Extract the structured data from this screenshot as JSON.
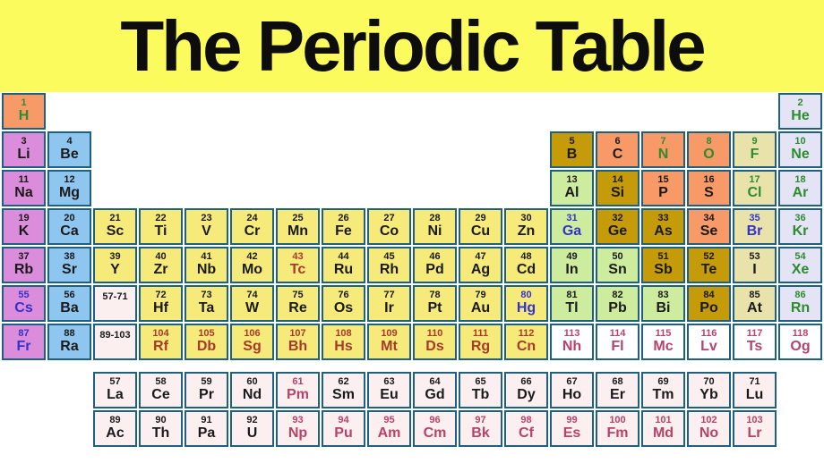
{
  "title": "The Periodic Table",
  "palette": {
    "header_bg": "#fbfb5e",
    "border": "#1d6080",
    "bg": {
      "alkali": "#db8cdb",
      "alkaline": "#8fc6f0",
      "transition": "#f6eb7a",
      "post": "#cdec9e",
      "metalloid": "#c59b0a",
      "nonmetal": "#f89a68",
      "halogen": "#eae2ab",
      "noble": "#e4e4f6",
      "fblock": "#fcefef",
      "white": "#ffffff"
    },
    "fg": {
      "black": "#1a1a1a",
      "green": "#2e8b2e",
      "blue": "#3333cc",
      "brick": "#a63a2a",
      "rose": "#b5436b"
    }
  },
  "placeholders": [
    {
      "label": "57-71",
      "r": 6,
      "c": 3,
      "bg": "fblock",
      "fg": "black"
    },
    {
      "label": "89-103",
      "r": 7,
      "c": 3,
      "bg": "fblock",
      "fg": "black"
    }
  ],
  "elements": [
    {
      "n": 1,
      "s": "H",
      "r": 1,
      "c": 1,
      "bg": "nonmetal",
      "fg": "green"
    },
    {
      "n": 2,
      "s": "He",
      "r": 1,
      "c": 18,
      "bg": "noble",
      "fg": "green"
    },
    {
      "n": 3,
      "s": "Li",
      "r": 2,
      "c": 1,
      "bg": "alkali",
      "fg": "black"
    },
    {
      "n": 4,
      "s": "Be",
      "r": 2,
      "c": 2,
      "bg": "alkaline",
      "fg": "black"
    },
    {
      "n": 5,
      "s": "B",
      "r": 2,
      "c": 13,
      "bg": "metalloid",
      "fg": "black"
    },
    {
      "n": 6,
      "s": "C",
      "r": 2,
      "c": 14,
      "bg": "nonmetal",
      "fg": "black"
    },
    {
      "n": 7,
      "s": "N",
      "r": 2,
      "c": 15,
      "bg": "nonmetal",
      "fg": "green"
    },
    {
      "n": 8,
      "s": "O",
      "r": 2,
      "c": 16,
      "bg": "nonmetal",
      "fg": "green"
    },
    {
      "n": 9,
      "s": "F",
      "r": 2,
      "c": 17,
      "bg": "halogen",
      "fg": "green"
    },
    {
      "n": 10,
      "s": "Ne",
      "r": 2,
      "c": 18,
      "bg": "noble",
      "fg": "green"
    },
    {
      "n": 11,
      "s": "Na",
      "r": 3,
      "c": 1,
      "bg": "alkali",
      "fg": "black"
    },
    {
      "n": 12,
      "s": "Mg",
      "r": 3,
      "c": 2,
      "bg": "alkaline",
      "fg": "black"
    },
    {
      "n": 13,
      "s": "Al",
      "r": 3,
      "c": 13,
      "bg": "post",
      "fg": "black"
    },
    {
      "n": 14,
      "s": "Si",
      "r": 3,
      "c": 14,
      "bg": "metalloid",
      "fg": "black"
    },
    {
      "n": 15,
      "s": "P",
      "r": 3,
      "c": 15,
      "bg": "nonmetal",
      "fg": "black"
    },
    {
      "n": 16,
      "s": "S",
      "r": 3,
      "c": 16,
      "bg": "nonmetal",
      "fg": "black"
    },
    {
      "n": 17,
      "s": "Cl",
      "r": 3,
      "c": 17,
      "bg": "halogen",
      "fg": "green"
    },
    {
      "n": 18,
      "s": "Ar",
      "r": 3,
      "c": 18,
      "bg": "noble",
      "fg": "green"
    },
    {
      "n": 19,
      "s": "K",
      "r": 4,
      "c": 1,
      "bg": "alkali",
      "fg": "black"
    },
    {
      "n": 20,
      "s": "Ca",
      "r": 4,
      "c": 2,
      "bg": "alkaline",
      "fg": "black"
    },
    {
      "n": 21,
      "s": "Sc",
      "r": 4,
      "c": 3,
      "bg": "transition",
      "fg": "black"
    },
    {
      "n": 22,
      "s": "Ti",
      "r": 4,
      "c": 4,
      "bg": "transition",
      "fg": "black"
    },
    {
      "n": 23,
      "s": "V",
      "r": 4,
      "c": 5,
      "bg": "transition",
      "fg": "black"
    },
    {
      "n": 24,
      "s": "Cr",
      "r": 4,
      "c": 6,
      "bg": "transition",
      "fg": "black"
    },
    {
      "n": 25,
      "s": "Mn",
      "r": 4,
      "c": 7,
      "bg": "transition",
      "fg": "black"
    },
    {
      "n": 26,
      "s": "Fe",
      "r": 4,
      "c": 8,
      "bg": "transition",
      "fg": "black"
    },
    {
      "n": 27,
      "s": "Co",
      "r": 4,
      "c": 9,
      "bg": "transition",
      "fg": "black"
    },
    {
      "n": 28,
      "s": "Ni",
      "r": 4,
      "c": 10,
      "bg": "transition",
      "fg": "black"
    },
    {
      "n": 29,
      "s": "Cu",
      "r": 4,
      "c": 11,
      "bg": "transition",
      "fg": "black"
    },
    {
      "n": 30,
      "s": "Zn",
      "r": 4,
      "c": 12,
      "bg": "transition",
      "fg": "black"
    },
    {
      "n": 31,
      "s": "Ga",
      "r": 4,
      "c": 13,
      "bg": "post",
      "fg": "blue"
    },
    {
      "n": 32,
      "s": "Ge",
      "r": 4,
      "c": 14,
      "bg": "metalloid",
      "fg": "black"
    },
    {
      "n": 33,
      "s": "As",
      "r": 4,
      "c": 15,
      "bg": "metalloid",
      "fg": "black"
    },
    {
      "n": 34,
      "s": "Se",
      "r": 4,
      "c": 16,
      "bg": "nonmetal",
      "fg": "black"
    },
    {
      "n": 35,
      "s": "Br",
      "r": 4,
      "c": 17,
      "bg": "halogen",
      "fg": "blue"
    },
    {
      "n": 36,
      "s": "Kr",
      "r": 4,
      "c": 18,
      "bg": "noble",
      "fg": "green"
    },
    {
      "n": 37,
      "s": "Rb",
      "r": 5,
      "c": 1,
      "bg": "alkali",
      "fg": "black"
    },
    {
      "n": 38,
      "s": "Sr",
      "r": 5,
      "c": 2,
      "bg": "alkaline",
      "fg": "black"
    },
    {
      "n": 39,
      "s": "Y",
      "r": 5,
      "c": 3,
      "bg": "transition",
      "fg": "black"
    },
    {
      "n": 40,
      "s": "Zr",
      "r": 5,
      "c": 4,
      "bg": "transition",
      "fg": "black"
    },
    {
      "n": 41,
      "s": "Nb",
      "r": 5,
      "c": 5,
      "bg": "transition",
      "fg": "black"
    },
    {
      "n": 42,
      "s": "Mo",
      "r": 5,
      "c": 6,
      "bg": "transition",
      "fg": "black"
    },
    {
      "n": 43,
      "s": "Tc",
      "r": 5,
      "c": 7,
      "bg": "transition",
      "fg": "brick"
    },
    {
      "n": 44,
      "s": "Ru",
      "r": 5,
      "c": 8,
      "bg": "transition",
      "fg": "black"
    },
    {
      "n": 45,
      "s": "Rh",
      "r": 5,
      "c": 9,
      "bg": "transition",
      "fg": "black"
    },
    {
      "n": 46,
      "s": "Pd",
      "r": 5,
      "c": 10,
      "bg": "transition",
      "fg": "black"
    },
    {
      "n": 47,
      "s": "Ag",
      "r": 5,
      "c": 11,
      "bg": "transition",
      "fg": "black"
    },
    {
      "n": 48,
      "s": "Cd",
      "r": 5,
      "c": 12,
      "bg": "transition",
      "fg": "black"
    },
    {
      "n": 49,
      "s": "In",
      "r": 5,
      "c": 13,
      "bg": "post",
      "fg": "black"
    },
    {
      "n": 50,
      "s": "Sn",
      "r": 5,
      "c": 14,
      "bg": "post",
      "fg": "black"
    },
    {
      "n": 51,
      "s": "Sb",
      "r": 5,
      "c": 15,
      "bg": "metalloid",
      "fg": "black"
    },
    {
      "n": 52,
      "s": "Te",
      "r": 5,
      "c": 16,
      "bg": "metalloid",
      "fg": "black"
    },
    {
      "n": 53,
      "s": "I",
      "r": 5,
      "c": 17,
      "bg": "halogen",
      "fg": "black"
    },
    {
      "n": 54,
      "s": "Xe",
      "r": 5,
      "c": 18,
      "bg": "noble",
      "fg": "green"
    },
    {
      "n": 55,
      "s": "Cs",
      "r": 6,
      "c": 1,
      "bg": "alkali",
      "fg": "blue"
    },
    {
      "n": 56,
      "s": "Ba",
      "r": 6,
      "c": 2,
      "bg": "alkaline",
      "fg": "black"
    },
    {
      "n": 72,
      "s": "Hf",
      "r": 6,
      "c": 4,
      "bg": "transition",
      "fg": "black"
    },
    {
      "n": 73,
      "s": "Ta",
      "r": 6,
      "c": 5,
      "bg": "transition",
      "fg": "black"
    },
    {
      "n": 74,
      "s": "W",
      "r": 6,
      "c": 6,
      "bg": "transition",
      "fg": "black"
    },
    {
      "n": 75,
      "s": "Re",
      "r": 6,
      "c": 7,
      "bg": "transition",
      "fg": "black"
    },
    {
      "n": 76,
      "s": "Os",
      "r": 6,
      "c": 8,
      "bg": "transition",
      "fg": "black"
    },
    {
      "n": 77,
      "s": "Ir",
      "r": 6,
      "c": 9,
      "bg": "transition",
      "fg": "black"
    },
    {
      "n": 78,
      "s": "Pt",
      "r": 6,
      "c": 10,
      "bg": "transition",
      "fg": "black"
    },
    {
      "n": 79,
      "s": "Au",
      "r": 6,
      "c": 11,
      "bg": "transition",
      "fg": "black"
    },
    {
      "n": 80,
      "s": "Hg",
      "r": 6,
      "c": 12,
      "bg": "transition",
      "fg": "blue"
    },
    {
      "n": 81,
      "s": "Tl",
      "r": 6,
      "c": 13,
      "bg": "post",
      "fg": "black"
    },
    {
      "n": 82,
      "s": "Pb",
      "r": 6,
      "c": 14,
      "bg": "post",
      "fg": "black"
    },
    {
      "n": 83,
      "s": "Bi",
      "r": 6,
      "c": 15,
      "bg": "post",
      "fg": "black"
    },
    {
      "n": 84,
      "s": "Po",
      "r": 6,
      "c": 16,
      "bg": "metalloid",
      "fg": "black"
    },
    {
      "n": 85,
      "s": "At",
      "r": 6,
      "c": 17,
      "bg": "halogen",
      "fg": "black"
    },
    {
      "n": 86,
      "s": "Rn",
      "r": 6,
      "c": 18,
      "bg": "noble",
      "fg": "green"
    },
    {
      "n": 87,
      "s": "Fr",
      "r": 7,
      "c": 1,
      "bg": "alkali",
      "fg": "blue"
    },
    {
      "n": 88,
      "s": "Ra",
      "r": 7,
      "c": 2,
      "bg": "alkaline",
      "fg": "black"
    },
    {
      "n": 104,
      "s": "Rf",
      "r": 7,
      "c": 4,
      "bg": "transition",
      "fg": "brick"
    },
    {
      "n": 105,
      "s": "Db",
      "r": 7,
      "c": 5,
      "bg": "transition",
      "fg": "brick"
    },
    {
      "n": 106,
      "s": "Sg",
      "r": 7,
      "c": 6,
      "bg": "transition",
      "fg": "brick"
    },
    {
      "n": 107,
      "s": "Bh",
      "r": 7,
      "c": 7,
      "bg": "transition",
      "fg": "brick"
    },
    {
      "n": 108,
      "s": "Hs",
      "r": 7,
      "c": 8,
      "bg": "transition",
      "fg": "brick"
    },
    {
      "n": 109,
      "s": "Mt",
      "r": 7,
      "c": 9,
      "bg": "transition",
      "fg": "brick"
    },
    {
      "n": 110,
      "s": "Ds",
      "r": 7,
      "c": 10,
      "bg": "transition",
      "fg": "brick"
    },
    {
      "n": 111,
      "s": "Rg",
      "r": 7,
      "c": 11,
      "bg": "transition",
      "fg": "brick"
    },
    {
      "n": 112,
      "s": "Cn",
      "r": 7,
      "c": 12,
      "bg": "transition",
      "fg": "brick"
    },
    {
      "n": 113,
      "s": "Nh",
      "r": 7,
      "c": 13,
      "bg": "white",
      "fg": "rose"
    },
    {
      "n": 114,
      "s": "Fl",
      "r": 7,
      "c": 14,
      "bg": "white",
      "fg": "rose"
    },
    {
      "n": 115,
      "s": "Mc",
      "r": 7,
      "c": 15,
      "bg": "white",
      "fg": "rose"
    },
    {
      "n": 116,
      "s": "Lv",
      "r": 7,
      "c": 16,
      "bg": "white",
      "fg": "rose"
    },
    {
      "n": 117,
      "s": "Ts",
      "r": 7,
      "c": 17,
      "bg": "white",
      "fg": "rose"
    },
    {
      "n": 118,
      "s": "Og",
      "r": 7,
      "c": 18,
      "bg": "white",
      "fg": "rose"
    },
    {
      "n": 57,
      "s": "La",
      "r": 8,
      "c": 3,
      "bg": "fblock",
      "fg": "black"
    },
    {
      "n": 58,
      "s": "Ce",
      "r": 8,
      "c": 4,
      "bg": "fblock",
      "fg": "black"
    },
    {
      "n": 59,
      "s": "Pr",
      "r": 8,
      "c": 5,
      "bg": "fblock",
      "fg": "black"
    },
    {
      "n": 60,
      "s": "Nd",
      "r": 8,
      "c": 6,
      "bg": "fblock",
      "fg": "black"
    },
    {
      "n": 61,
      "s": "Pm",
      "r": 8,
      "c": 7,
      "bg": "fblock",
      "fg": "rose"
    },
    {
      "n": 62,
      "s": "Sm",
      "r": 8,
      "c": 8,
      "bg": "fblock",
      "fg": "black"
    },
    {
      "n": 63,
      "s": "Eu",
      "r": 8,
      "c": 9,
      "bg": "fblock",
      "fg": "black"
    },
    {
      "n": 64,
      "s": "Gd",
      "r": 8,
      "c": 10,
      "bg": "fblock",
      "fg": "black"
    },
    {
      "n": 65,
      "s": "Tb",
      "r": 8,
      "c": 11,
      "bg": "fblock",
      "fg": "black"
    },
    {
      "n": 66,
      "s": "Dy",
      "r": 8,
      "c": 12,
      "bg": "fblock",
      "fg": "black"
    },
    {
      "n": 67,
      "s": "Ho",
      "r": 8,
      "c": 13,
      "bg": "fblock",
      "fg": "black"
    },
    {
      "n": 68,
      "s": "Er",
      "r": 8,
      "c": 14,
      "bg": "fblock",
      "fg": "black"
    },
    {
      "n": 69,
      "s": "Tm",
      "r": 8,
      "c": 15,
      "bg": "fblock",
      "fg": "black"
    },
    {
      "n": 70,
      "s": "Yb",
      "r": 8,
      "c": 16,
      "bg": "fblock",
      "fg": "black"
    },
    {
      "n": 71,
      "s": "Lu",
      "r": 8,
      "c": 17,
      "bg": "fblock",
      "fg": "black"
    },
    {
      "n": 89,
      "s": "Ac",
      "r": 9,
      "c": 3,
      "bg": "fblock",
      "fg": "black"
    },
    {
      "n": 90,
      "s": "Th",
      "r": 9,
      "c": 4,
      "bg": "fblock",
      "fg": "black"
    },
    {
      "n": 91,
      "s": "Pa",
      "r": 9,
      "c": 5,
      "bg": "fblock",
      "fg": "black"
    },
    {
      "n": 92,
      "s": "U",
      "r": 9,
      "c": 6,
      "bg": "fblock",
      "fg": "black"
    },
    {
      "n": 93,
      "s": "Np",
      "r": 9,
      "c": 7,
      "bg": "fblock",
      "fg": "rose"
    },
    {
      "n": 94,
      "s": "Pu",
      "r": 9,
      "c": 8,
      "bg": "fblock",
      "fg": "rose"
    },
    {
      "n": 95,
      "s": "Am",
      "r": 9,
      "c": 9,
      "bg": "fblock",
      "fg": "rose"
    },
    {
      "n": 96,
      "s": "Cm",
      "r": 9,
      "c": 10,
      "bg": "fblock",
      "fg": "rose"
    },
    {
      "n": 97,
      "s": "Bk",
      "r": 9,
      "c": 11,
      "bg": "fblock",
      "fg": "rose"
    },
    {
      "n": 98,
      "s": "Cf",
      "r": 9,
      "c": 12,
      "bg": "fblock",
      "fg": "rose"
    },
    {
      "n": 99,
      "s": "Es",
      "r": 9,
      "c": 13,
      "bg": "fblock",
      "fg": "rose"
    },
    {
      "n": 100,
      "s": "Fm",
      "r": 9,
      "c": 14,
      "bg": "fblock",
      "fg": "rose"
    },
    {
      "n": 101,
      "s": "Md",
      "r": 9,
      "c": 15,
      "bg": "fblock",
      "fg": "rose"
    },
    {
      "n": 102,
      "s": "No",
      "r": 9,
      "c": 16,
      "bg": "fblock",
      "fg": "rose"
    },
    {
      "n": 103,
      "s": "Lr",
      "r": 9,
      "c": 17,
      "bg": "fblock",
      "fg": "rose"
    }
  ]
}
